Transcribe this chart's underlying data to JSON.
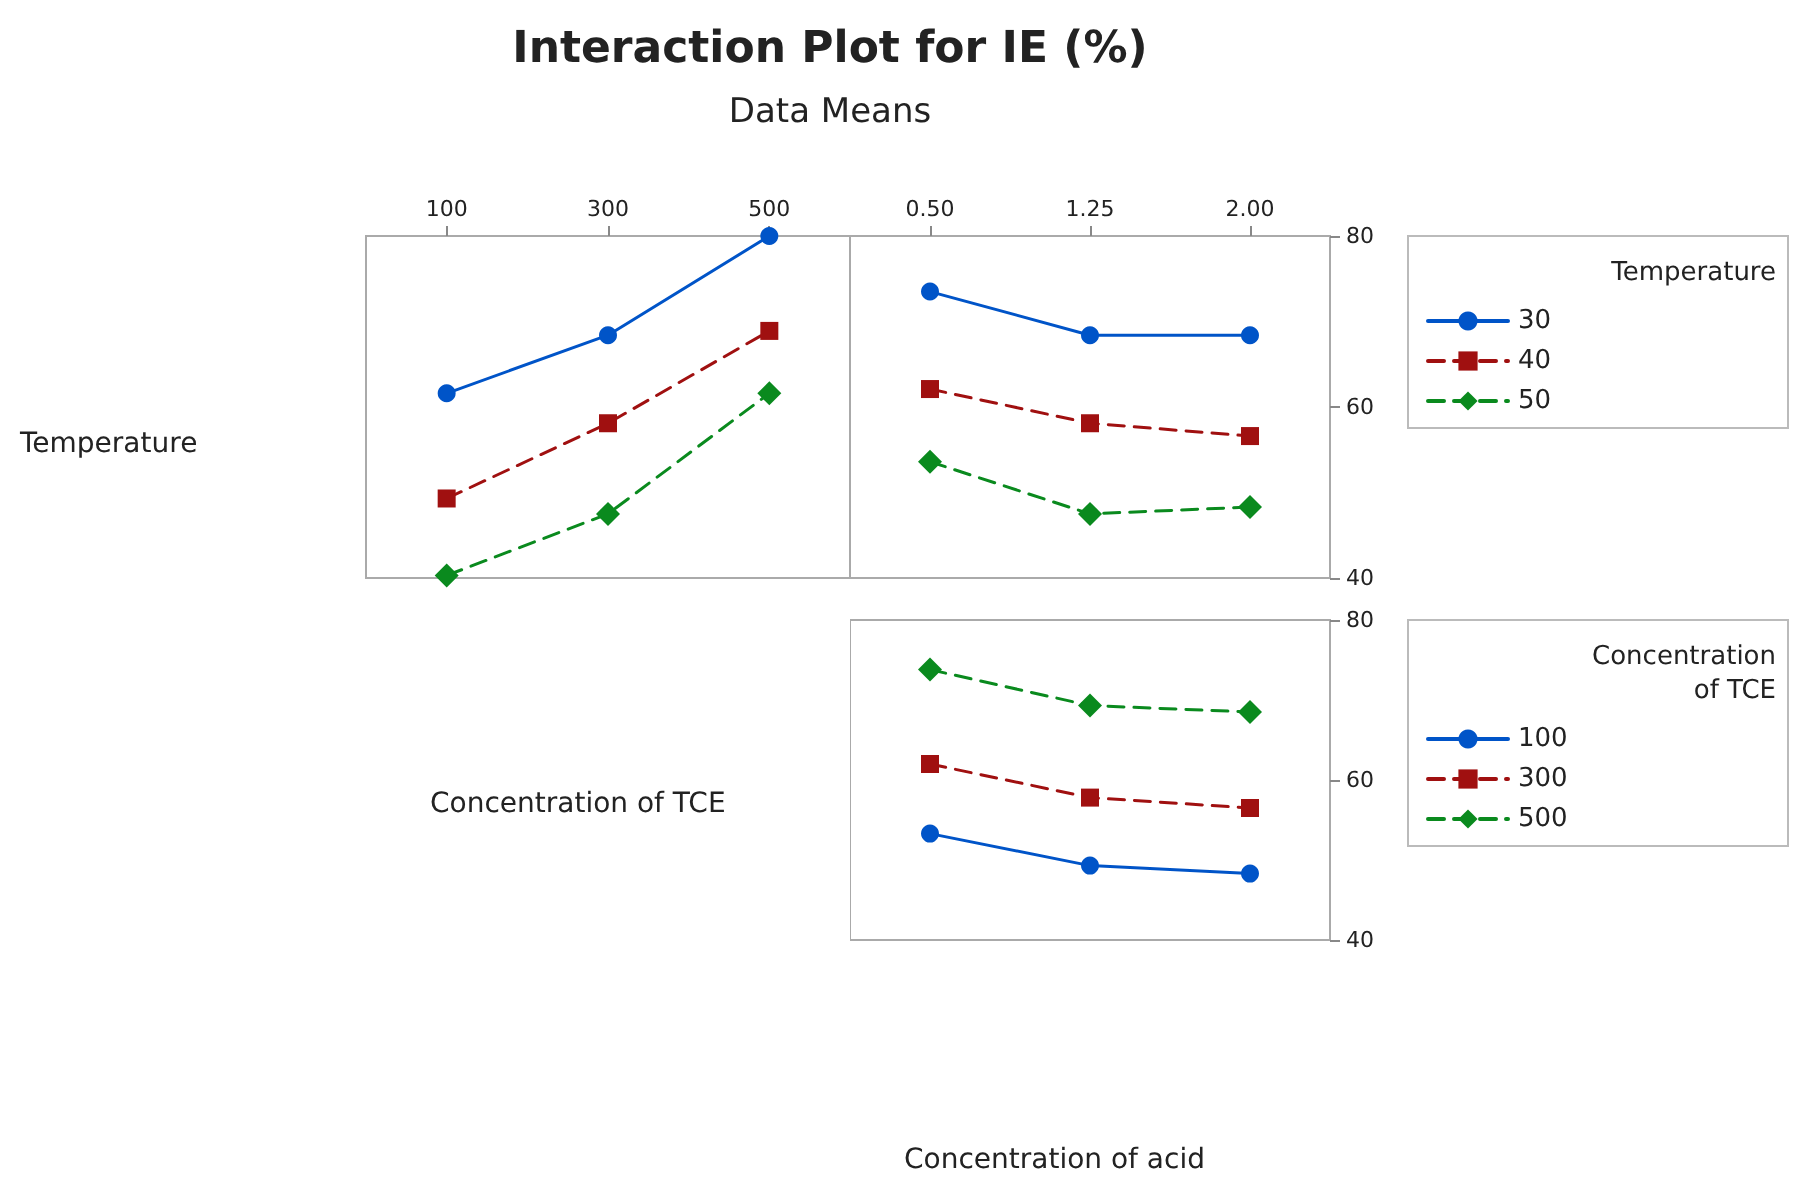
{
  "chart_data": [
    {
      "type": "line",
      "title": "Interaction Plot for IE (%)",
      "subtitle": "Data Means",
      "annotations": [
        "Temperature",
        "Concentration of TCE",
        "Concentration of acid"
      ],
      "categories": [
        "100",
        "300",
        "500"
      ],
      "ylim": [
        40,
        80
      ],
      "yticks": [
        40,
        60,
        80
      ],
      "tick_labels": "x",
      "legend": false,
      "grid": false,
      "series": [
        {
          "color": "#0054c8",
          "marker": "circle",
          "line_style": "solid",
          "values": [
            61.6,
            68.4,
            80
          ]
        },
        {
          "color": "#a01010",
          "marker": "square",
          "line_style": "dashed",
          "values": [
            49.3,
            58.1,
            68.9
          ]
        },
        {
          "color": "#0a8a1e",
          "marker": "diamond",
          "line_style": "dashed",
          "values": [
            40.3,
            47.5,
            61.6
          ]
        }
      ]
    },
    {
      "type": "line",
      "categories": [
        "0.50",
        "1.25",
        "2.00"
      ],
      "ylim": [
        40,
        80
      ],
      "yticks": [
        40,
        60,
        80
      ],
      "legend": "right",
      "legend_title": "Temperature",
      "grid": false,
      "series": [
        {
          "name": "30",
          "color": "#0054c8",
          "marker": "circle",
          "line_style": "solid",
          "values": [
            73.5,
            68.4,
            68.4
          ]
        },
        {
          "name": "40",
          "color": "#a01010",
          "marker": "square",
          "line_style": "dashed",
          "values": [
            62.1,
            58.1,
            56.6
          ]
        },
        {
          "name": "50",
          "color": "#0a8a1e",
          "marker": "diamond",
          "line_style": "dashed",
          "values": [
            53.6,
            47.5,
            48.3
          ]
        }
      ]
    },
    {
      "type": "line",
      "categories": [
        "0.50",
        "1.25",
        "2.00"
      ],
      "ylim": [
        40,
        80
      ],
      "yticks": [
        40,
        60,
        80
      ],
      "tick_labels": "y",
      "legend": "right",
      "legend_title": "Concentration of TCE",
      "grid": false,
      "series": [
        {
          "name": "100",
          "color": "#0054c8",
          "marker": "circle",
          "line_style": "solid",
          "values": [
            53.3,
            49.3,
            48.3
          ]
        },
        {
          "name": "300",
          "color": "#a01010",
          "marker": "square",
          "line_style": "dashed",
          "values": [
            62,
            57.8,
            56.5
          ]
        },
        {
          "name": "500",
          "color": "#0a8a1e",
          "marker": "diamond",
          "line_style": "dashed",
          "values": [
            73.8,
            69.3,
            68.5
          ]
        }
      ]
    }
  ]
}
